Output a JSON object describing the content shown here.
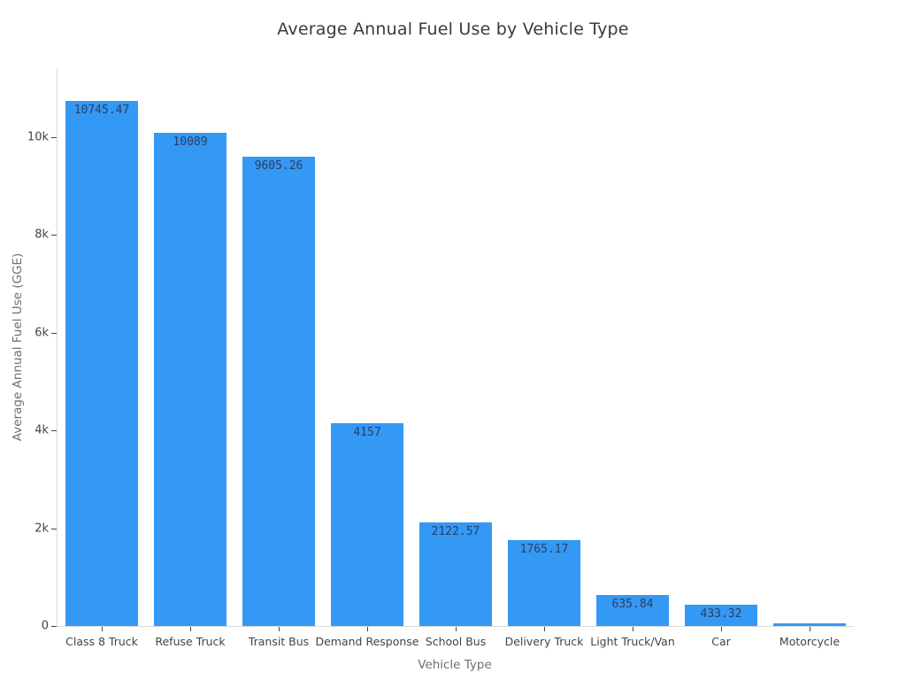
{
  "chart_data": {
    "type": "bar",
    "title": "Average Annual Fuel Use by Vehicle Type",
    "xlabel": "Vehicle Type",
    "ylabel": "Average Annual Fuel Use (GGE)",
    "categories": [
      "Class 8 Truck",
      "Refuse Truck",
      "Transit Bus",
      "Demand Response",
      "School Bus",
      "Delivery Truck",
      "Light Truck/Van",
      "Car",
      "Motorcycle"
    ],
    "values": [
      10745.47,
      10089,
      9605.26,
      4157,
      2122.57,
      1765.17,
      635.84,
      433.32,
      53
    ],
    "bar_labels": [
      "10745.47",
      "10089",
      "9605.26",
      "4157",
      "2122.57",
      "1765.17",
      "635.84",
      "433.32",
      ""
    ],
    "ylim": [
      0,
      11413
    ],
    "yticks": [
      {
        "value": 0,
        "label": "0"
      },
      {
        "value": 2000,
        "label": "2k"
      },
      {
        "value": 4000,
        "label": "4k"
      },
      {
        "value": 6000,
        "label": "6k"
      },
      {
        "value": 8000,
        "label": "8k"
      },
      {
        "value": 10000,
        "label": "10k"
      }
    ],
    "grid": false,
    "legend": "none",
    "colors": {
      "bar": "#3498f5",
      "bar_label_text": "#2a3f5f",
      "tick_text": "#444444",
      "axis_title_text": "#6f6f6f",
      "title_text": "#3b3b3b",
      "axis_line": "#d9d9d9",
      "tick_mark": "#444444"
    }
  }
}
